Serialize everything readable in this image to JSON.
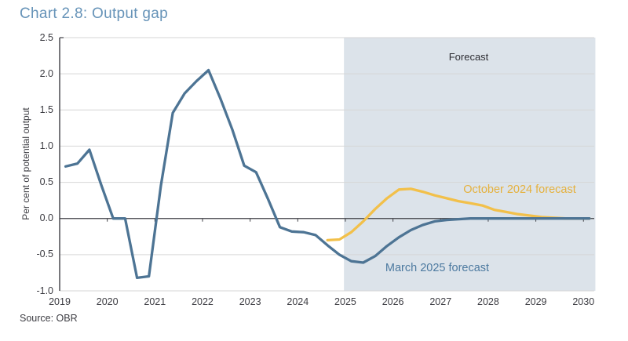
{
  "title": "Chart 2.8: Output gap",
  "source": "Source: OBR",
  "annotations": {
    "forecast_region": "Forecast",
    "october_series_label": "October 2024 forecast",
    "march_series_label": "March 2025 forecast"
  },
  "colors": {
    "title_text": "#6693b8",
    "march_line": "#4d7494",
    "october_line": "#f2c04a",
    "forecast_shade": "#dce3ea",
    "axis": "#3f3f45",
    "gridline": "#d6d6d6"
  },
  "chart_data": {
    "type": "line",
    "title": "Chart 2.8: Output gap",
    "xlabel": "",
    "ylabel": "Per cent of potential output",
    "ylim": [
      -1.0,
      2.5
    ],
    "xlim": [
      2019,
      2030.25
    ],
    "grid": "horizontal",
    "legend_position": "inline-annotations",
    "forecast_region": {
      "label": "Forecast",
      "x_start": 2024.97,
      "x_end": 2030.25
    },
    "y_tick_labels": [
      "2.5",
      "2.0",
      "1.5",
      "1.0",
      "0.5",
      "0.0",
      "-0.5",
      "-1.0"
    ],
    "x_tick_labels": [
      "2019",
      "2020",
      "2021",
      "2022",
      "2023",
      "2024",
      "2025",
      "2026",
      "2027",
      "2028",
      "2029",
      "2030"
    ],
    "series": [
      {
        "name": "March 2025 forecast",
        "color": "#4d7494",
        "x_start": 2019.125,
        "x_step": 0.25,
        "y": [
          0.72,
          0.76,
          0.95,
          0.46,
          0.0,
          0.0,
          -0.82,
          -0.8,
          0.45,
          1.46,
          1.73,
          1.9,
          2.05,
          1.66,
          1.23,
          0.73,
          0.64,
          0.27,
          -0.12,
          -0.18,
          -0.19,
          -0.23,
          -0.37,
          -0.5,
          -0.59,
          -0.61,
          -0.52,
          -0.38,
          -0.26,
          -0.16,
          -0.09,
          -0.04,
          -0.02,
          -0.01,
          0.0,
          0.0,
          0.0,
          0.0,
          0.0,
          0.0,
          0.0,
          0.0,
          0.0,
          0.0,
          0.0
        ]
      },
      {
        "name": "October 2024 forecast",
        "color": "#f2c04a",
        "x_start": 2024.625,
        "x_step": 0.25,
        "y": [
          -0.3,
          -0.29,
          -0.19,
          -0.04,
          0.13,
          0.28,
          0.4,
          0.41,
          0.37,
          0.32,
          0.28,
          0.24,
          0.21,
          0.18,
          0.12,
          0.09,
          0.06,
          0.04,
          0.02,
          0.01,
          0.0,
          0.0,
          0.0
        ]
      }
    ]
  }
}
